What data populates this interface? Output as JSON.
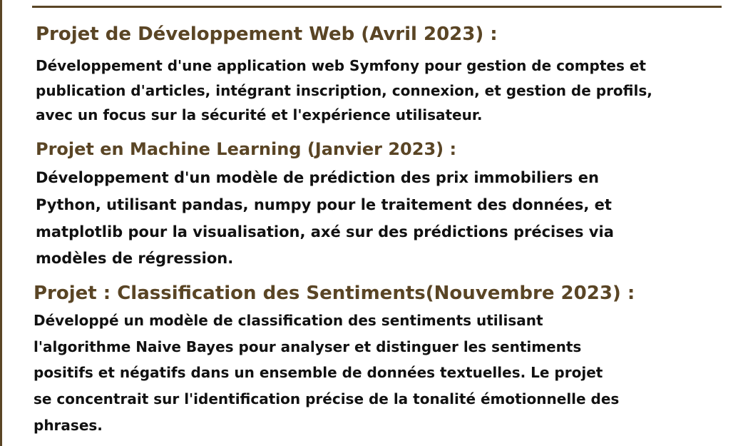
{
  "projects": [
    {
      "title": "Projet de Développement Web (Avril 2023) :",
      "lines": [
        "Développement d'une application web Symfony pour gestion de comptes et",
        "publication d'articles, intégrant inscription, connexion, et gestion de profils,",
        "avec un focus sur la sécurité et l'expérience utilisateur."
      ]
    },
    {
      "title": "Projet en Machine Learning (Janvier 2023) :",
      "lines": [
        "Développement d'un modèle de prédiction des prix immobiliers en",
        "Python, utilisant pandas, numpy pour le traitement des données, et",
        "matplotlib pour la visualisation, axé sur des prédictions précises via",
        "modèles de régression."
      ]
    },
    {
      "title": "Projet : Classification des Sentiments(Nouvembre 2023) :",
      "lines": [
        "Développé un modèle de classification des sentiments utilisant",
        "l'algorithme Naive Bayes pour analyser et distinguer les sentiments",
        "positifs et négatifs dans un ensemble de données textuelles. Le projet",
        "se concentrait sur l'identification précise de la tonalité émotionnelle des",
        "phrases."
      ]
    }
  ],
  "colors": {
    "heading": "#5a4525",
    "body": "#111111",
    "rule": "#5a4525"
  }
}
